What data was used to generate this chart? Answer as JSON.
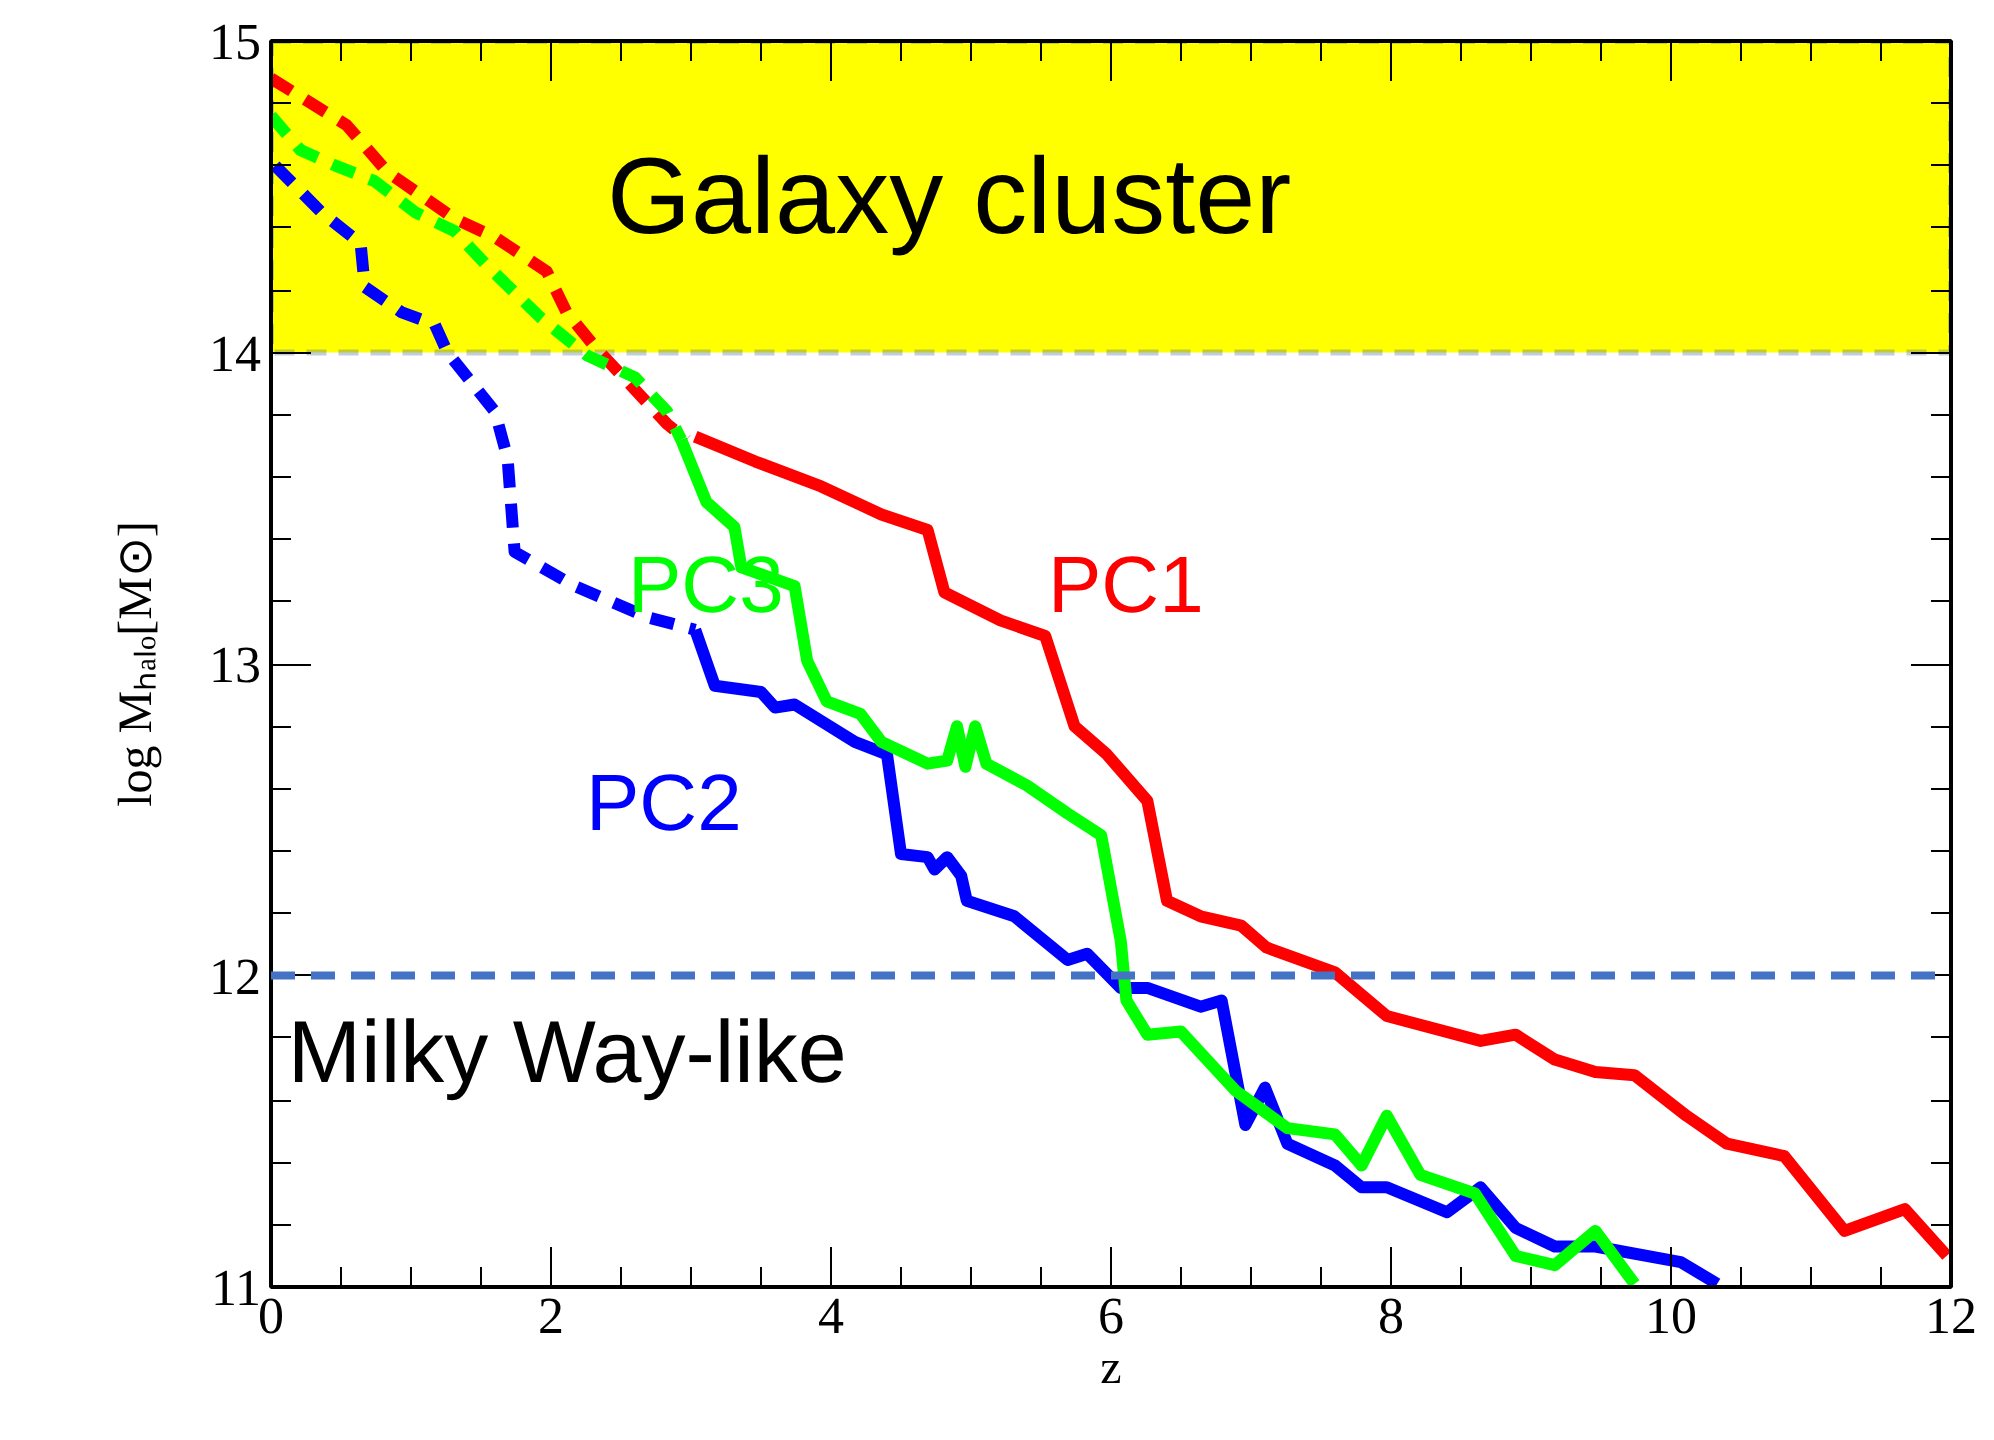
{
  "chart_data": {
    "type": "line",
    "xlabel": "z",
    "ylabel": "log Mₕₐₗₒ[M⊙]",
    "xlim": [
      0,
      12
    ],
    "ylim": [
      11,
      15
    ],
    "xticks": [
      0,
      {
        "value": 0.5,
        "label": null
      },
      {
        "value": 1,
        "label": null
      },
      {
        "value": 1.5,
        "label": null
      },
      2,
      {
        "value": 2.5,
        "label": null
      },
      {
        "value": 3,
        "label": null
      },
      {
        "value": 3.5,
        "label": null
      },
      4,
      {
        "value": 4.5,
        "label": null
      },
      {
        "value": 5,
        "label": null
      },
      {
        "value": 5.5,
        "label": null
      },
      6,
      {
        "value": 6.5,
        "label": null
      },
      {
        "value": 7,
        "label": null
      },
      {
        "value": 7.5,
        "label": null
      },
      8,
      {
        "value": 8.5,
        "label": null
      },
      {
        "value": 9,
        "label": null
      },
      {
        "value": 9.5,
        "label": null
      },
      10,
      {
        "value": 10.5,
        "label": null
      },
      {
        "value": 11,
        "label": null
      },
      {
        "value": 11.5,
        "label": null
      },
      12
    ],
    "yticks": [
      11,
      {
        "value": 11.2,
        "label": null
      },
      {
        "value": 11.4,
        "label": null
      },
      {
        "value": 11.6,
        "label": null
      },
      {
        "value": 11.8,
        "label": null
      },
      12,
      {
        "value": 12.2,
        "label": null
      },
      {
        "value": 12.4,
        "label": null
      },
      {
        "value": 12.6,
        "label": null
      },
      {
        "value": 12.8,
        "label": null
      },
      13,
      {
        "value": 13.2,
        "label": null
      },
      {
        "value": 13.4,
        "label": null
      },
      {
        "value": 13.6,
        "label": null
      },
      {
        "value": 13.8,
        "label": null
      },
      14,
      {
        "value": 14.2,
        "label": null
      },
      {
        "value": 14.4,
        "label": null
      },
      {
        "value": 14.6,
        "label": null
      },
      {
        "value": 14.8,
        "label": null
      },
      15
    ],
    "grid": false,
    "bands": [
      {
        "axis": "y",
        "from": 14,
        "to": 15,
        "label": "Galaxy cluster",
        "color": "#ffff00"
      }
    ],
    "ref_lines": [
      {
        "axis": "y",
        "value": 12,
        "label": "Milky Way-like",
        "color": "#4472c4",
        "line_style": "dashed"
      }
    ],
    "series": [
      {
        "color": "#ff0000",
        "line_style": "dashed",
        "x": [
          0,
          0.54,
          0.83,
          1.31,
          1.6,
          1.97,
          2.11,
          2.31,
          2.83,
          2.97
        ],
        "values": [
          14.88,
          14.73,
          14.58,
          14.43,
          14.37,
          14.26,
          14.13,
          14.02,
          13.77,
          13.72
        ]
      },
      {
        "name": "PC1",
        "color": "#ff0000",
        "line_style": "solid",
        "x": [
          3.03,
          3.46,
          3.93,
          4.36,
          4.69,
          4.81,
          5.21,
          5.53,
          5.74,
          5.97,
          6.26,
          6.4,
          6.64,
          6.93,
          7.11,
          7.6,
          7.97,
          8.64,
          8.89,
          9.17,
          9.46,
          9.74,
          10.11,
          10.4,
          10.81,
          11.24,
          11.67,
          11.97
        ],
        "values": [
          13.73,
          13.65,
          13.57,
          13.48,
          13.43,
          13.23,
          13.14,
          13.09,
          12.8,
          12.71,
          12.56,
          12.24,
          12.19,
          12.16,
          12.09,
          12.01,
          11.87,
          11.79,
          11.81,
          11.73,
          11.69,
          11.68,
          11.55,
          11.46,
          11.42,
          11.18,
          11.25,
          11.1
        ]
      },
      {
        "color": "#0000ff",
        "line_style": "dashed",
        "x": [
          0.03,
          0.36,
          0.64,
          0.67,
          0.93,
          1.17,
          1.26,
          1.6,
          1.69,
          1.74,
          2.17,
          2.69,
          3.03
        ],
        "values": [
          14.6,
          14.45,
          14.35,
          14.21,
          14.13,
          14.09,
          14.0,
          13.81,
          13.66,
          13.36,
          13.25,
          13.15,
          13.11
        ]
      },
      {
        "name": "PC2",
        "color": "#0000ff",
        "line_style": "solid",
        "x": [
          3.03,
          3.17,
          3.5,
          3.6,
          3.74,
          4.17,
          4.4,
          4.5,
          4.69,
          4.74,
          4.83,
          4.93,
          4.97,
          5.31,
          5.69,
          5.83,
          6.07,
          6.26,
          6.64,
          6.79,
          6.96,
          7.1,
          7.26,
          7.6,
          7.79,
          7.97,
          8.4,
          8.64,
          8.89,
          9.17,
          9.46,
          10.07,
          10.33
        ],
        "values": [
          13.11,
          12.93,
          12.91,
          12.86,
          12.87,
          12.75,
          12.71,
          12.39,
          12.38,
          12.34,
          12.38,
          12.32,
          12.24,
          12.19,
          12.05,
          12.07,
          11.96,
          11.96,
          11.9,
          11.92,
          11.52,
          11.64,
          11.46,
          11.39,
          11.32,
          11.32,
          11.24,
          11.32,
          11.19,
          11.13,
          11.13,
          11.08,
          11.01
        ]
      },
      {
        "color": "#00ff00",
        "line_style": "dashed",
        "x": [
          0,
          0.21,
          0.46,
          0.74,
          1.03,
          1.31,
          1.54,
          1.93,
          2.26,
          2.6,
          2.83,
          2.93
        ],
        "values": [
          14.76,
          14.65,
          14.6,
          14.55,
          14.45,
          14.39,
          14.28,
          14.11,
          13.99,
          13.92,
          13.81,
          13.72
        ]
      },
      {
        "name": "PC3",
        "color": "#00ff00",
        "line_style": "solid",
        "x": [
          2.93,
          3.11,
          3.31,
          3.36,
          3.74,
          3.83,
          3.97,
          4.21,
          4.36,
          4.69,
          4.83,
          4.9,
          4.96,
          5.03,
          5.11,
          5.4,
          5.69,
          5.93,
          6.07,
          6.11,
          6.26,
          6.5,
          6.89,
          7.26,
          7.6,
          7.79,
          7.97,
          8.21,
          8.6,
          8.89,
          9.17,
          9.46,
          9.74
        ],
        "values": [
          13.72,
          13.52,
          13.44,
          13.31,
          13.25,
          13.01,
          12.88,
          12.84,
          12.75,
          12.68,
          12.69,
          12.8,
          12.67,
          12.8,
          12.68,
          12.61,
          12.52,
          12.45,
          12.11,
          11.92,
          11.81,
          11.82,
          11.63,
          11.51,
          11.49,
          11.39,
          11.55,
          11.36,
          11.3,
          11.1,
          11.07,
          11.18,
          11.01
        ]
      }
    ]
  }
}
